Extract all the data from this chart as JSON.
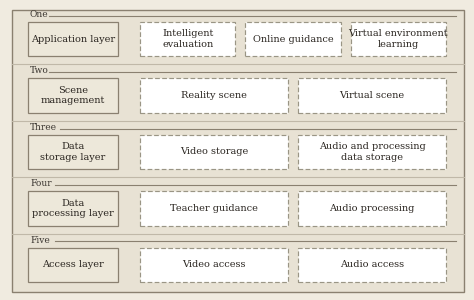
{
  "background_color": "#f0ebe0",
  "outer_bg": "#ddd8ca",
  "row_bg_color": "#e8e2d4",
  "left_box_fill": "#ede8da",
  "left_box_edge": "#8a8070",
  "dashed_box_fill": "#ffffff",
  "dashed_box_edge": "#9a9585",
  "separator_color": "#c0b8a8",
  "outer_border_color": "#8a8070",
  "text_color": "#2a2520",
  "label_color": "#3a3530",
  "rows": [
    {
      "label": "One",
      "left_box": "Application layer",
      "items": [
        "Intelligent\nevaluation",
        "Online guidance",
        "Virtual environment\nlearning"
      ],
      "n_items": 3
    },
    {
      "label": "Two",
      "left_box": "Scene\nmanagement",
      "items": [
        "Reality scene",
        "Virtual scene"
      ],
      "n_items": 2
    },
    {
      "label": "Three",
      "left_box": "Data\nstorage layer",
      "items": [
        "Video storage",
        "Audio and processing\ndata storage"
      ],
      "n_items": 2
    },
    {
      "label": "Four",
      "left_box": "Data\nprocessing layer",
      "items": [
        "Teacher guidance",
        "Audio processing"
      ],
      "n_items": 2
    },
    {
      "label": "Five",
      "left_box": "Access layer",
      "items": [
        "Video access",
        "Audio access"
      ],
      "n_items": 2
    }
  ],
  "figsize": [
    4.74,
    3.0
  ],
  "dpi": 100
}
